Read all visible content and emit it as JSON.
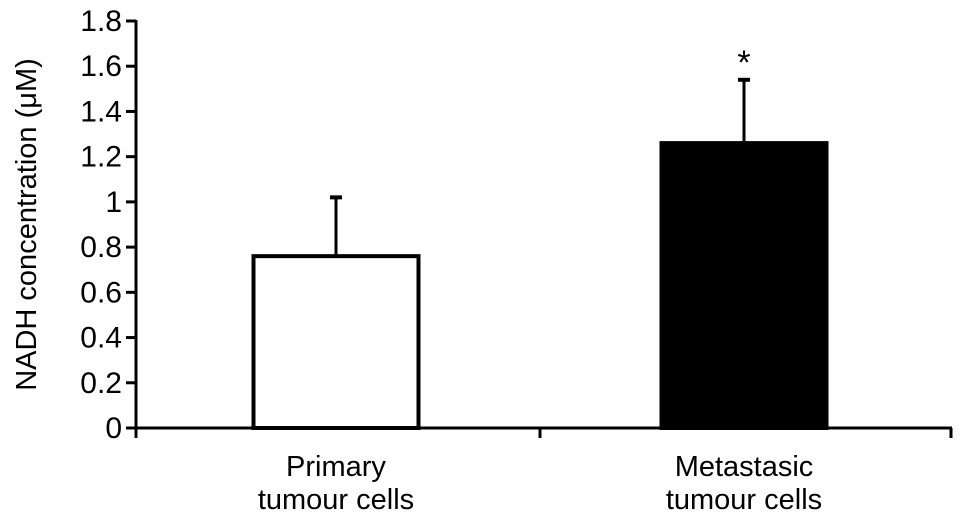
{
  "chart_data": {
    "type": "bar",
    "title": "",
    "xlabel": "",
    "ylabel": "NADH concentration (μM)",
    "ylim": [
      0,
      1.8
    ],
    "yticks": [
      "0",
      "0.2",
      "0.4",
      "0.6",
      "0.8",
      "1",
      "1.2",
      "1.4",
      "1.6",
      "1.8"
    ],
    "categories": [
      [
        "Primary",
        "tumour cells"
      ],
      [
        "Metastasic",
        "tumour cells"
      ]
    ],
    "values": [
      0.76,
      1.26
    ],
    "error_upper": [
      1.02,
      1.54
    ],
    "significance": [
      "",
      "*"
    ],
    "bar_fills": [
      "#ffffff",
      "#000000"
    ],
    "grid": false,
    "legend": "none"
  }
}
